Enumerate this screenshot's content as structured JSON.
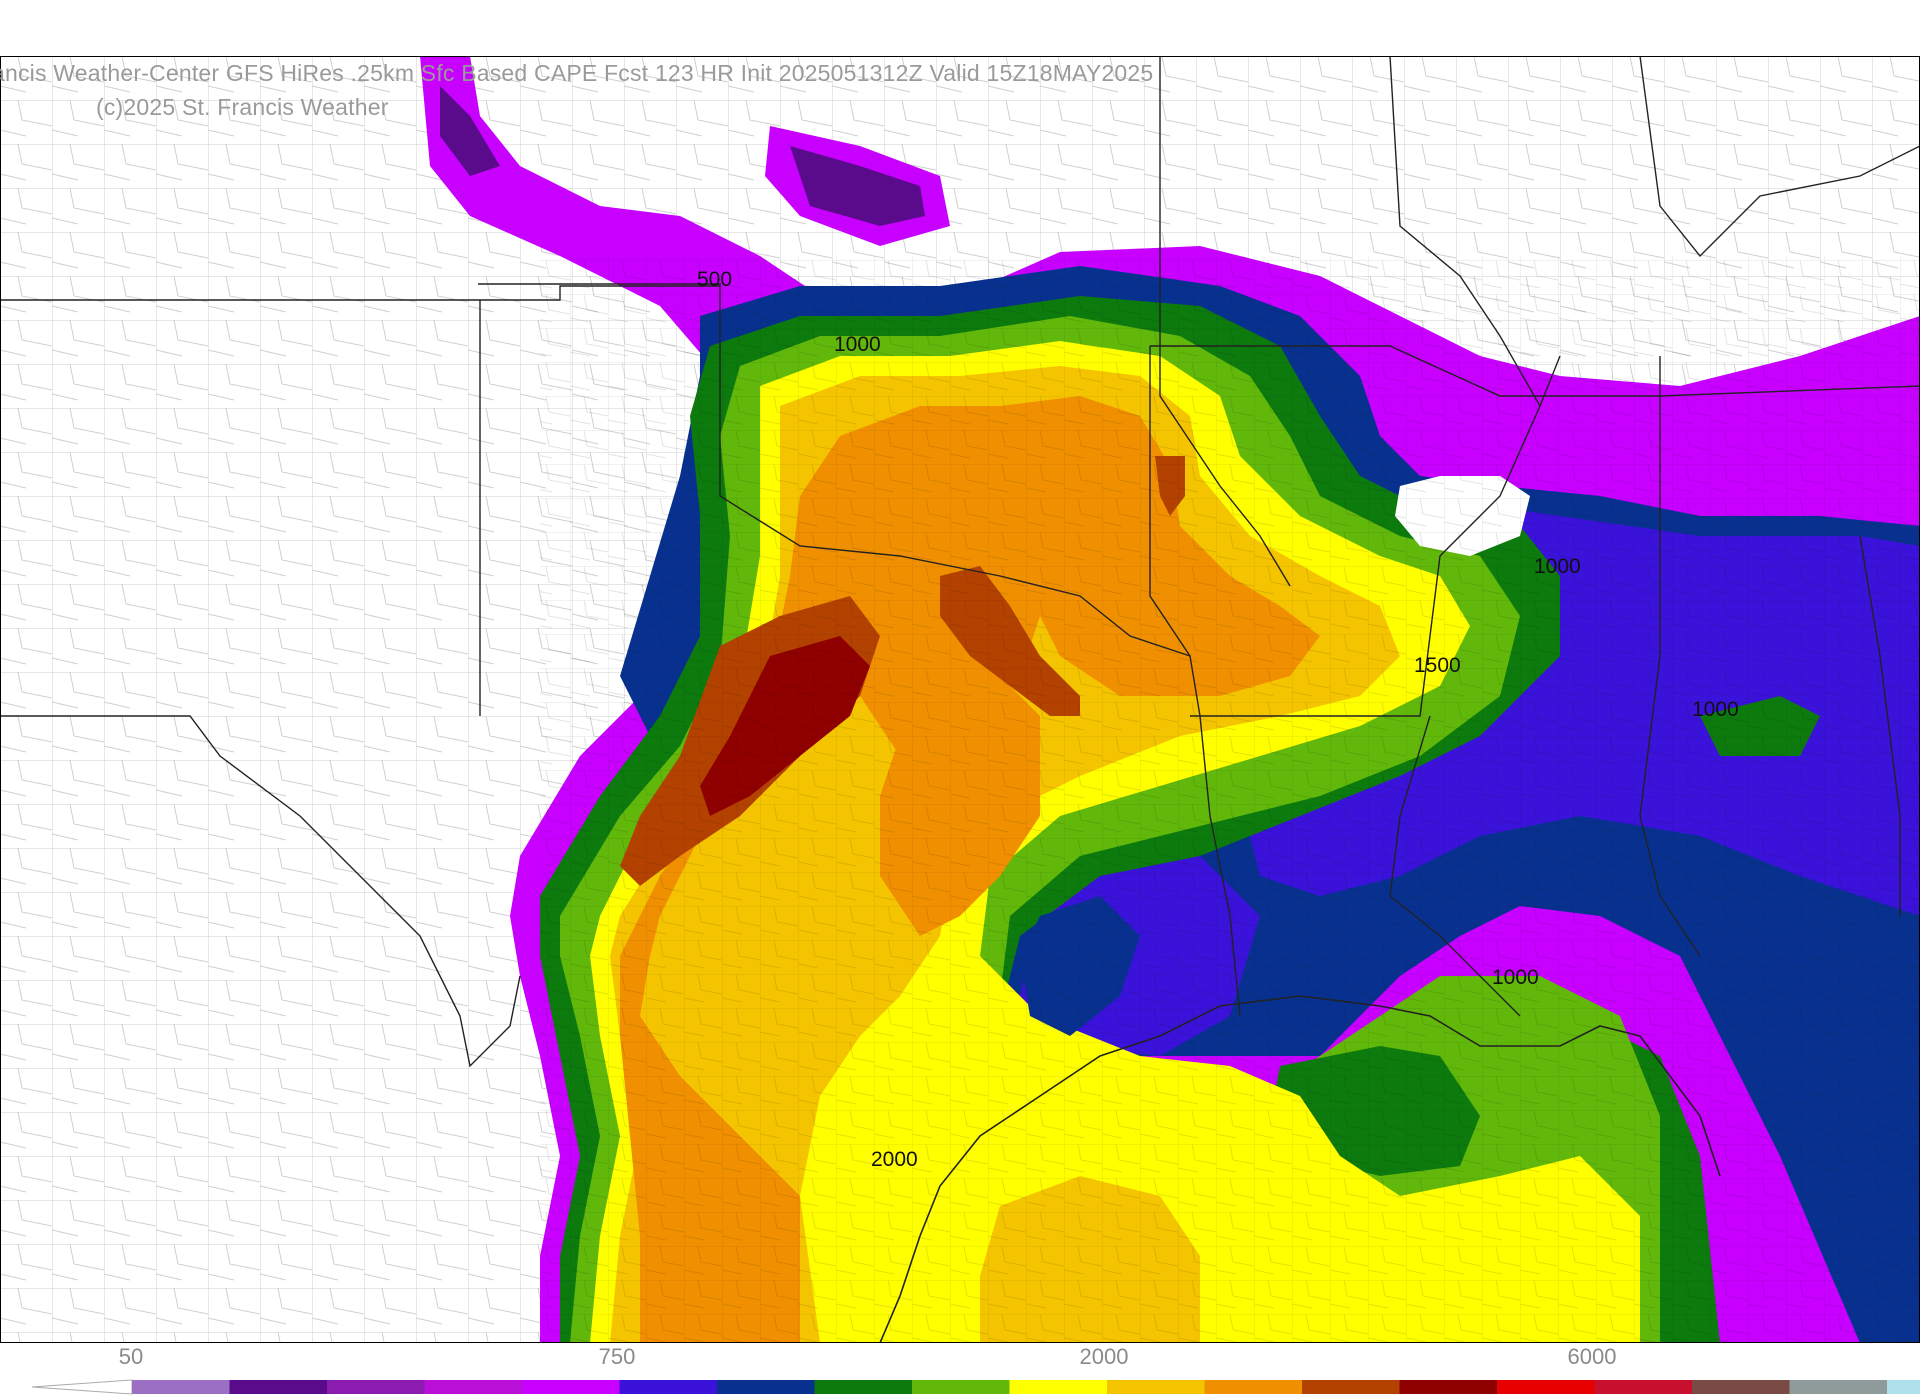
{
  "header": {
    "title_line1": "ancis Weather-Center GFS HiRes .25km Sfc Based CAPE  Fcst 123 HR Init 2025051312Z  Valid 15Z18MAY2025",
    "title_line2": "(c)2025 St. Francis Weather"
  },
  "map": {
    "field": "Sfc Based CAPE",
    "contour_labels": [
      {
        "text": "500",
        "lon": -97.2,
        "lat": 37.6
      },
      {
        "text": "1000",
        "lon": -95.6,
        "lat": 36.9
      },
      {
        "text": "1000",
        "lon": -83.4,
        "lat": 32.8
      },
      {
        "text": "1500",
        "lon": -84.0,
        "lat": 31.3
      },
      {
        "text": "1000",
        "lon": -81.2,
        "lat": 30.0
      },
      {
        "text": "1000",
        "lon": -83.8,
        "lat": 26.2
      },
      {
        "text": "2000",
        "lon": -92.2,
        "lat": 24.0
      }
    ]
  },
  "colorbar": {
    "tick_labels": [
      "50",
      "750",
      "2000",
      "6000"
    ],
    "colors": [
      "#9b6fc4",
      "#5a0b8c",
      "#8c1bb0",
      "#b90fd6",
      "#c800ff",
      "#3b12d9",
      "#08318f",
      "#0d7a0e",
      "#62b80a",
      "#ffff00",
      "#f5c400",
      "#f09000",
      "#b34200",
      "#8f0000",
      "#e60000",
      "#c8102e",
      "#7a4a44",
      "#8f9a9a",
      "#aee0ec"
    ]
  }
}
